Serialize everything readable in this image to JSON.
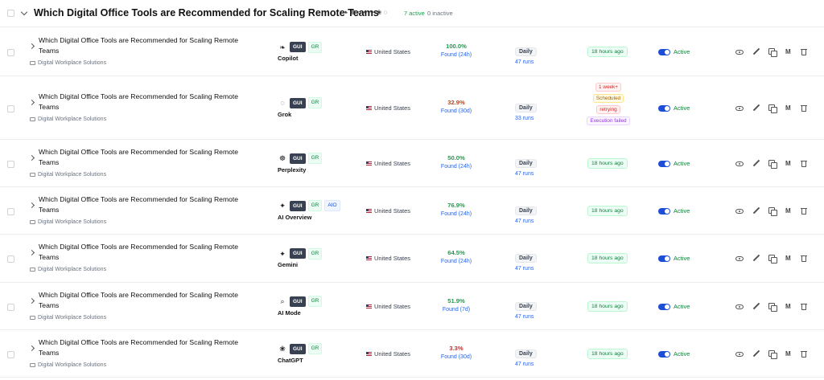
{
  "group": {
    "title": "Which Digital Office Tools are Recommended for Scaling Remote Teams",
    "active_count": "7 active",
    "inactive_count": "0 inactive"
  },
  "colors": {
    "green": "#16a34a",
    "orange": "#c2410c",
    "red": "#dc2626",
    "blue": "#2563eb"
  },
  "rows": [
    {
      "title": "Which Digital Office Tools are Recommended for Scaling Remote Teams",
      "folder": "Digital Workplace Solutions",
      "model_icon": "copilot-icon",
      "model_glyph": "❧",
      "tags": [
        "GUI",
        "GR"
      ],
      "model": "Copilot",
      "country": "United States",
      "score": "100.0%",
      "score_color": "#16a34a",
      "found": "Found (24h)",
      "frequency": "Daily",
      "runs": "47 runs",
      "last_run": "18 hours ago",
      "status": "Active"
    },
    {
      "title": "Which Digital Office Tools are Recommended for Scaling Remote Teams",
      "folder": "Digital Workplace Solutions",
      "model_icon": "grok-icon",
      "model_glyph": "◌",
      "tags": [
        "GUI",
        "GR"
      ],
      "model": "Grok",
      "country": "United States",
      "score": "32.9%",
      "score_color": "#c2410c",
      "found": "Found (30d)",
      "frequency": "Daily",
      "runs": "33 runs",
      "status_pills": [
        "1 week+",
        "Scheduled",
        "retrying",
        "Execution failed"
      ],
      "status": "Active"
    },
    {
      "title": "Which Digital Office Tools are Recommended for Scaling Remote Teams",
      "folder": "Digital Workplace Solutions",
      "model_icon": "perplexity-icon",
      "model_glyph": "☸",
      "tags": [
        "GUI",
        "GR"
      ],
      "model": "Perplexity",
      "country": "United States",
      "score": "50.0%",
      "score_color": "#16a34a",
      "found": "Found (24h)",
      "frequency": "Daily",
      "runs": "47 runs",
      "last_run": "18 hours ago",
      "status": "Active"
    },
    {
      "title": "Which Digital Office Tools are Recommended for Scaling Remote Teams",
      "folder": "Digital Workplace Solutions",
      "model_icon": "ai-overview-icon",
      "model_glyph": "✦",
      "tags": [
        "GUI",
        "GR",
        "AIO"
      ],
      "model": "AI Overview",
      "country": "United States",
      "score": "76.9%",
      "score_color": "#16a34a",
      "found": "Found (24h)",
      "frequency": "Daily",
      "runs": "47 runs",
      "last_run": "18 hours ago",
      "status": "Active"
    },
    {
      "title": "Which Digital Office Tools are Recommended for Scaling Remote Teams",
      "folder": "Digital Workplace Solutions",
      "model_icon": "gemini-icon",
      "model_glyph": "✦",
      "tags": [
        "GUI",
        "GR"
      ],
      "model": "Gemini",
      "country": "United States",
      "score": "64.5%",
      "score_color": "#16a34a",
      "found": "Found (24h)",
      "frequency": "Daily",
      "runs": "47 runs",
      "last_run": "18 hours ago",
      "status": "Active"
    },
    {
      "title": "Which Digital Office Tools are Recommended for Scaling Remote Teams",
      "folder": "Digital Workplace Solutions",
      "model_icon": "ai-mode-icon",
      "model_glyph": "⌕",
      "tags": [
        "GUI",
        "GR"
      ],
      "model": "AI Mode",
      "country": "United States",
      "score": "51.9%",
      "score_color": "#16a34a",
      "found": "Found (7d)",
      "frequency": "Daily",
      "runs": "47 runs",
      "last_run": "18 hours ago",
      "status": "Active"
    },
    {
      "title": "Which Digital Office Tools are Recommended for Scaling Remote Teams",
      "folder": "Digital Workplace Solutions",
      "model_icon": "chatgpt-icon",
      "model_glyph": "❀",
      "tags": [
        "GUI",
        "GR"
      ],
      "model": "ChatGPT",
      "country": "United States",
      "score": "3.3%",
      "score_color": "#dc2626",
      "found": "Found (30d)",
      "frequency": "Daily",
      "runs": "47 runs",
      "last_run": "18 hours ago",
      "status": "Active"
    }
  ],
  "actions": {
    "view_icon": "eye-icon",
    "edit_icon": "pencil-icon",
    "duplicate_icon": "copy-icon",
    "m_label": "M",
    "delete_icon": "trash-icon"
  }
}
